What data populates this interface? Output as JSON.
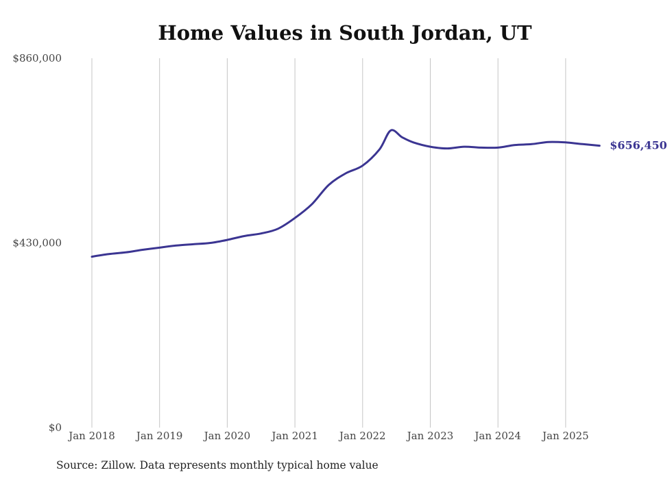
{
  "chart_data": {
    "type": "line",
    "title": "Home Values in South Jordan, UT",
    "xlabel": "",
    "ylabel": "",
    "ylim": [
      0,
      860000
    ],
    "y_ticks": [
      {
        "value": 0,
        "label": "$0"
      },
      {
        "value": 430000,
        "label": "$430,000"
      },
      {
        "value": 860000,
        "label": "$860,000"
      }
    ],
    "xlim": [
      "2018-01",
      "2025-07"
    ],
    "x_ticks": [
      {
        "value": "2018-01",
        "label": "Jan 2018"
      },
      {
        "value": "2019-01",
        "label": "Jan 2019"
      },
      {
        "value": "2020-01",
        "label": "Jan 2020"
      },
      {
        "value": "2021-01",
        "label": "Jan 2021"
      },
      {
        "value": "2022-01",
        "label": "Jan 2022"
      },
      {
        "value": "2023-01",
        "label": "Jan 2023"
      },
      {
        "value": "2024-01",
        "label": "Jan 2024"
      },
      {
        "value": "2025-01",
        "label": "Jan 2025"
      }
    ],
    "grid": "vertical",
    "line_color": "#3b3592",
    "series": [
      {
        "points": [
          {
            "x": "2018-01",
            "y": 398000
          },
          {
            "x": "2018-04",
            "y": 404000
          },
          {
            "x": "2018-07",
            "y": 408000
          },
          {
            "x": "2018-10",
            "y": 414000
          },
          {
            "x": "2019-01",
            "y": 419000
          },
          {
            "x": "2019-04",
            "y": 424000
          },
          {
            "x": "2019-07",
            "y": 427000
          },
          {
            "x": "2019-10",
            "y": 430000
          },
          {
            "x": "2020-01",
            "y": 437000
          },
          {
            "x": "2020-04",
            "y": 446000
          },
          {
            "x": "2020-07",
            "y": 452000
          },
          {
            "x": "2020-10",
            "y": 463000
          },
          {
            "x": "2021-01",
            "y": 488000
          },
          {
            "x": "2021-04",
            "y": 520000
          },
          {
            "x": "2021-07",
            "y": 565000
          },
          {
            "x": "2021-10",
            "y": 592000
          },
          {
            "x": "2022-01",
            "y": 610000
          },
          {
            "x": "2022-04",
            "y": 648000
          },
          {
            "x": "2022-06",
            "y": 692000
          },
          {
            "x": "2022-08",
            "y": 676000
          },
          {
            "x": "2022-10",
            "y": 664000
          },
          {
            "x": "2023-01",
            "y": 654000
          },
          {
            "x": "2023-04",
            "y": 650000
          },
          {
            "x": "2023-07",
            "y": 654000
          },
          {
            "x": "2023-10",
            "y": 652000
          },
          {
            "x": "2024-01",
            "y": 652000
          },
          {
            "x": "2024-04",
            "y": 658000
          },
          {
            "x": "2024-07",
            "y": 660000
          },
          {
            "x": "2024-10",
            "y": 665000
          },
          {
            "x": "2025-01",
            "y": 664000
          },
          {
            "x": "2025-04",
            "y": 660000
          },
          {
            "x": "2025-07",
            "y": 656450
          }
        ],
        "end_label": "$656,450"
      }
    ],
    "source_note": "Source: Zillow. Data represents monthly typical home value"
  }
}
